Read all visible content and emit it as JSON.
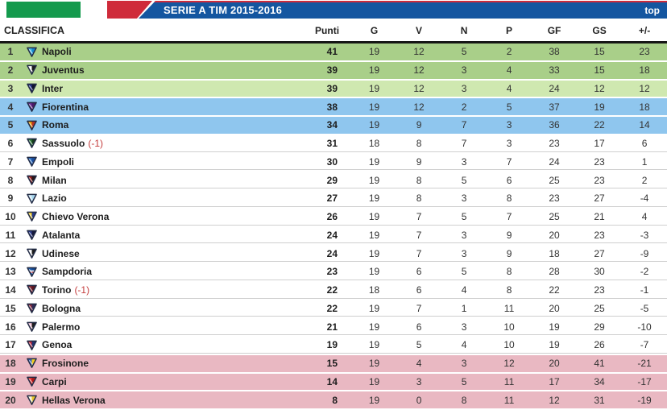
{
  "header": {
    "title": "SERIE A TIM 2015-2016",
    "top_link": "top",
    "flag_green": "#149a4d",
    "flag_red": "#cf2b3a",
    "bar_blue": "#1456a0"
  },
  "table": {
    "caption": "CLASSIFICA",
    "columns": [
      "Punti",
      "G",
      "V",
      "N",
      "P",
      "GF",
      "GS",
      "+/-"
    ],
    "zone_colors": {
      "champions": "#a9cf89",
      "champions_light": "#cfe8b0",
      "europa": "#8fc6ee",
      "none": "#ffffff",
      "relegation": "#e9b8c2"
    },
    "rows": [
      {
        "rank": 1,
        "team": "Napoli",
        "note": "",
        "zone": "champions",
        "icon": [
          "#45b8ea",
          "#1589cf"
        ],
        "punti": 41,
        "g": 19,
        "v": 12,
        "n": 5,
        "p": 2,
        "gf": 38,
        "gs": 15,
        "diff": 23
      },
      {
        "rank": 2,
        "team": "Juventus",
        "note": "",
        "zone": "champions",
        "icon": [
          "#ffffff",
          "#1b1b1b"
        ],
        "punti": 39,
        "g": 19,
        "v": 12,
        "n": 3,
        "p": 4,
        "gf": 33,
        "gs": 15,
        "diff": 18
      },
      {
        "rank": 3,
        "team": "Inter",
        "note": "",
        "zone": "champions_light",
        "icon": [
          "#27348b",
          "#10142e"
        ],
        "punti": 39,
        "g": 19,
        "v": 12,
        "n": 3,
        "p": 4,
        "gf": 24,
        "gs": 12,
        "diff": 12
      },
      {
        "rank": 4,
        "team": "Fiorentina",
        "note": "",
        "zone": "europa",
        "icon": [
          "#6a2d91",
          "#4a1a68"
        ],
        "punti": 38,
        "g": 19,
        "v": 12,
        "n": 2,
        "p": 5,
        "gf": 37,
        "gs": 19,
        "diff": 18
      },
      {
        "rank": 5,
        "team": "Roma",
        "note": "",
        "zone": "europa",
        "icon": [
          "#e89c00",
          "#b93222"
        ],
        "punti": 34,
        "g": 19,
        "v": 9,
        "n": 7,
        "p": 3,
        "gf": 36,
        "gs": 22,
        "diff": 14
      },
      {
        "rank": 6,
        "team": "Sassuolo",
        "note": "(-1)",
        "zone": "none",
        "icon": [
          "#2f7d3b",
          "#153a1c"
        ],
        "punti": 31,
        "g": 18,
        "v": 8,
        "n": 7,
        "p": 3,
        "gf": 23,
        "gs": 17,
        "diff": 6
      },
      {
        "rank": 7,
        "team": "Empoli",
        "note": "",
        "zone": "none",
        "icon": [
          "#2d6fc1",
          "#1a4fa0"
        ],
        "punti": 30,
        "g": 19,
        "v": 9,
        "n": 3,
        "p": 7,
        "gf": 24,
        "gs": 23,
        "diff": 1
      },
      {
        "rank": 8,
        "team": "Milan",
        "note": "",
        "zone": "none",
        "icon": [
          "#9b1c1c",
          "#2a1616"
        ],
        "punti": 29,
        "g": 19,
        "v": 8,
        "n": 5,
        "p": 6,
        "gf": 25,
        "gs": 23,
        "diff": 2
      },
      {
        "rank": 9,
        "team": "Lazio",
        "note": "",
        "zone": "none",
        "icon": [
          "#cfeaf7",
          "#a8d8ef"
        ],
        "punti": 27,
        "g": 19,
        "v": 8,
        "n": 3,
        "p": 8,
        "gf": 23,
        "gs": 27,
        "diff": -4
      },
      {
        "rank": 10,
        "team": "Chievo Verona",
        "note": "",
        "zone": "none",
        "icon": [
          "#f6d32b",
          "#273a8c"
        ],
        "punti": 26,
        "g": 19,
        "v": 7,
        "n": 5,
        "p": 7,
        "gf": 25,
        "gs": 21,
        "diff": 4
      },
      {
        "rank": 11,
        "team": "Atalanta",
        "note": "",
        "zone": "none",
        "icon": [
          "#2b3a8c",
          "#14173a"
        ],
        "punti": 24,
        "g": 19,
        "v": 7,
        "n": 3,
        "p": 9,
        "gf": 20,
        "gs": 23,
        "diff": -3
      },
      {
        "rank": 12,
        "team": "Udinese",
        "note": "",
        "zone": "none",
        "icon": [
          "#ffffff",
          "#1d1d1d"
        ],
        "punti": 24,
        "g": 19,
        "v": 7,
        "n": 3,
        "p": 9,
        "gf": 18,
        "gs": 27,
        "diff": -9
      },
      {
        "rank": 13,
        "team": "Sampdoria",
        "note": "",
        "zone": "none",
        "icon": [
          "#1f5fb0",
          "#154a92",
          "#c62828"
        ],
        "punti": 23,
        "g": 19,
        "v": 6,
        "n": 5,
        "p": 8,
        "gf": 28,
        "gs": 30,
        "diff": -2
      },
      {
        "rank": 14,
        "team": "Torino",
        "note": "(-1)",
        "zone": "none",
        "icon": [
          "#7c2330",
          "#5a1620"
        ],
        "punti": 22,
        "g": 18,
        "v": 6,
        "n": 4,
        "p": 8,
        "gf": 22,
        "gs": 23,
        "diff": -1
      },
      {
        "rank": 15,
        "team": "Bologna",
        "note": "",
        "zone": "none",
        "icon": [
          "#8a2b3e",
          "#322a55"
        ],
        "punti": 22,
        "g": 19,
        "v": 7,
        "n": 1,
        "p": 11,
        "gf": 20,
        "gs": 25,
        "diff": -5
      },
      {
        "rank": 16,
        "team": "Palermo",
        "note": "",
        "zone": "none",
        "icon": [
          "#f6c6d9",
          "#1d1d1d"
        ],
        "punti": 21,
        "g": 19,
        "v": 6,
        "n": 3,
        "p": 10,
        "gf": 19,
        "gs": 29,
        "diff": -10
      },
      {
        "rank": 17,
        "team": "Genoa",
        "note": "",
        "zone": "none",
        "icon": [
          "#c5283a",
          "#20306e"
        ],
        "punti": 19,
        "g": 19,
        "v": 5,
        "n": 4,
        "p": 10,
        "gf": 19,
        "gs": 26,
        "diff": -7
      },
      {
        "rank": 18,
        "team": "Frosinone",
        "note": "",
        "zone": "relegation",
        "icon": [
          "#3a66c0",
          "#f2d01f"
        ],
        "punti": 15,
        "g": 19,
        "v": 4,
        "n": 3,
        "p": 12,
        "gf": 20,
        "gs": 41,
        "diff": -21
      },
      {
        "rank": 19,
        "team": "Carpi",
        "note": "",
        "zone": "relegation",
        "icon": [
          "#e23333",
          "#b01818"
        ],
        "punti": 14,
        "g": 19,
        "v": 3,
        "n": 5,
        "p": 11,
        "gf": 17,
        "gs": 34,
        "diff": -17
      },
      {
        "rank": 20,
        "team": "Hellas Verona",
        "note": "",
        "zone": "relegation",
        "icon": [
          "#f7f3da",
          "#e8c52a"
        ],
        "punti": 8,
        "g": 19,
        "v": 0,
        "n": 8,
        "p": 11,
        "gf": 12,
        "gs": 31,
        "diff": -19
      }
    ]
  }
}
